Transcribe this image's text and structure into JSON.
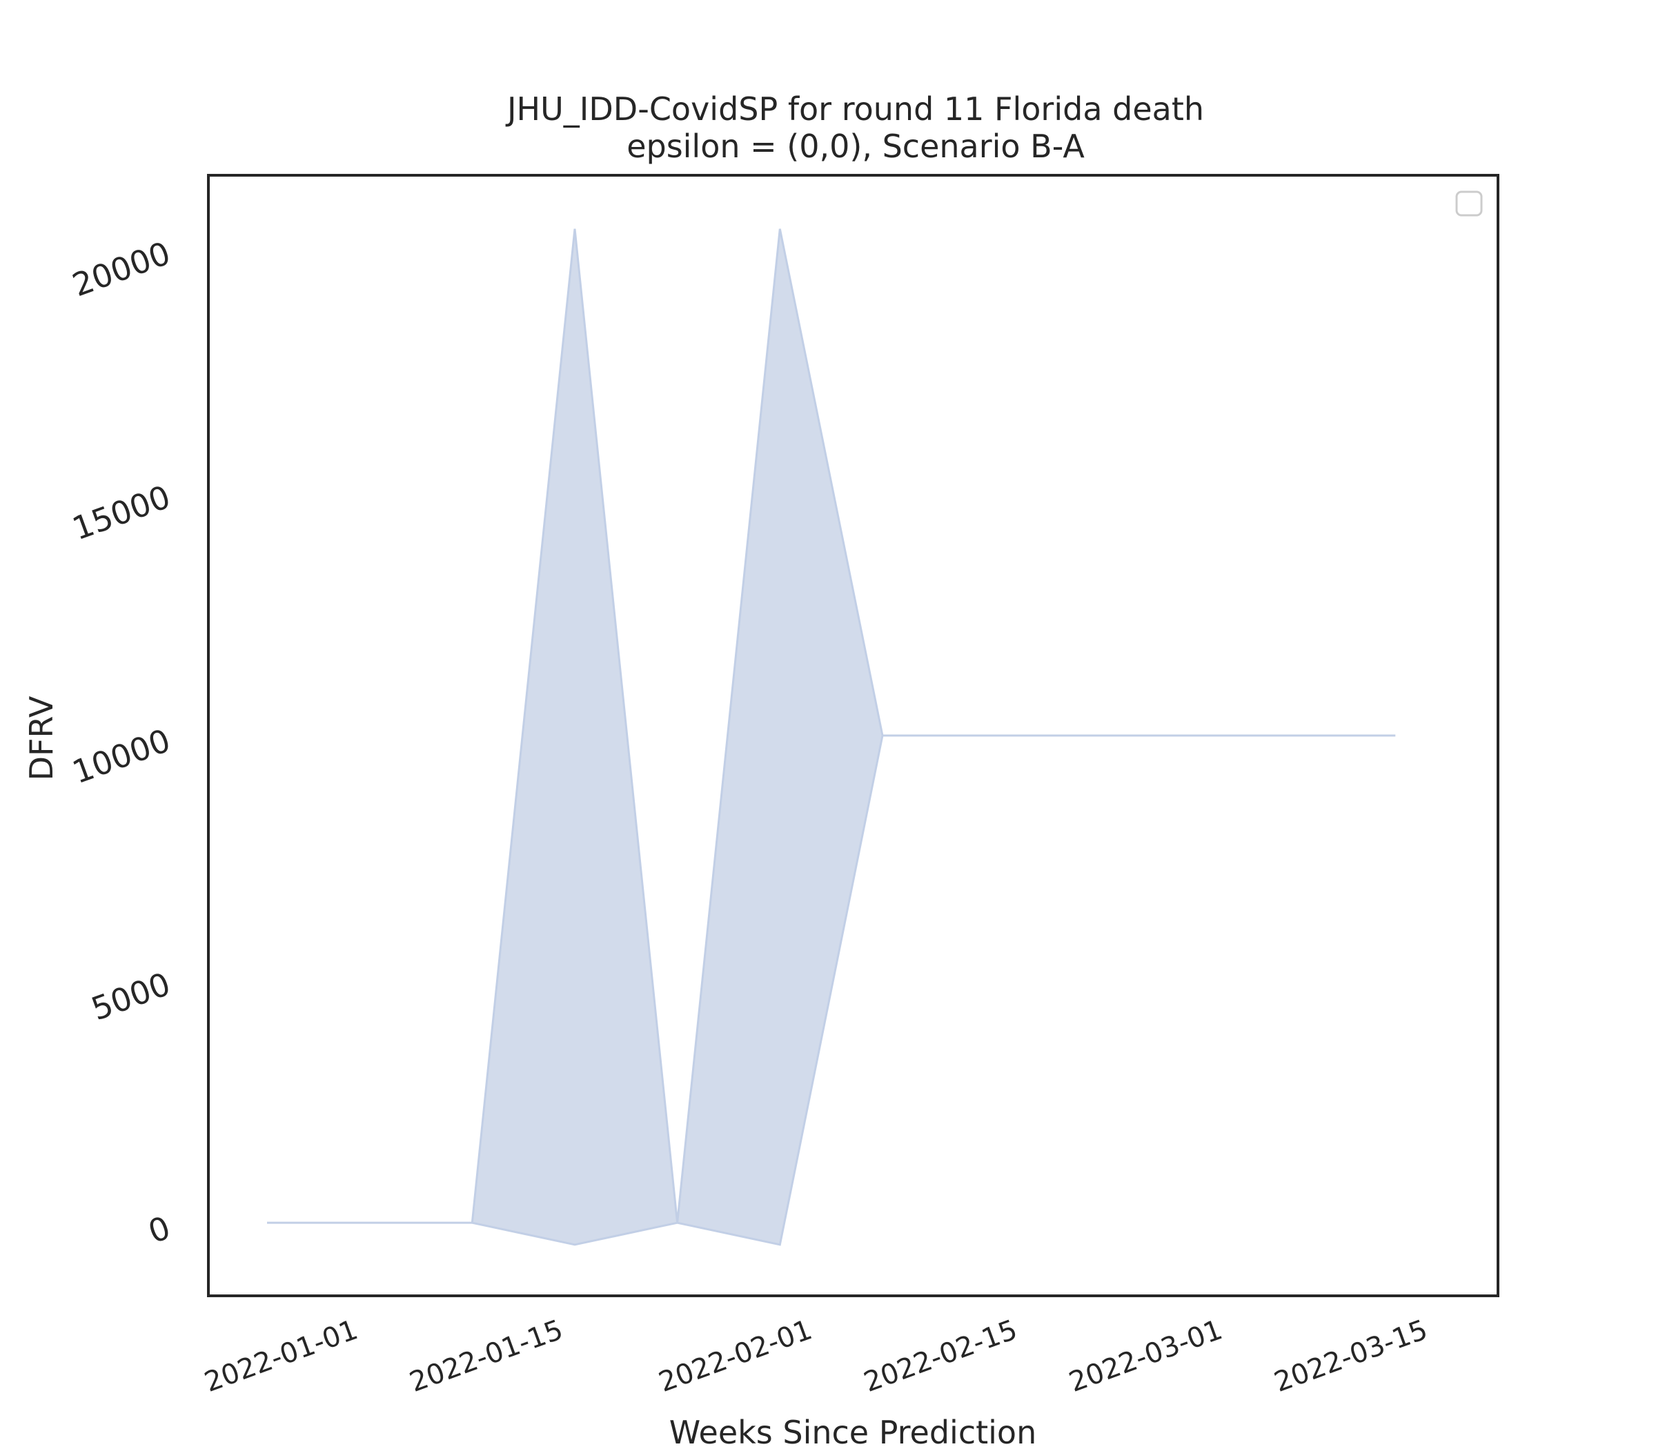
{
  "chart_data": {
    "type": "area",
    "title": "JHU_IDD-CovidSP for round 11 Florida death",
    "subtitle": "epsilon = (0,0), Scenario B-A",
    "xlabel": "Weeks Since Prediction",
    "ylabel": "DFRV",
    "x_tick_labels": [
      "2022-01-01",
      "2022-01-15",
      "2022-02-01",
      "2022-02-15",
      "2022-03-01",
      "2022-03-15"
    ],
    "x_tick_dates": [
      "2022-01-01",
      "2022-01-15",
      "2022-02-01",
      "2022-02-15",
      "2022-03-01",
      "2022-03-15"
    ],
    "y_ticks": [
      0,
      5000,
      10000,
      15000,
      20000
    ],
    "ylim": [
      -1500,
      21500
    ],
    "xlim": [
      "2021-12-23",
      "2022-03-21"
    ],
    "grid": false,
    "legend": "top-right (empty)",
    "color": "#c2cfe6",
    "series": [
      {
        "x": [
          "2021-12-27",
          "2022-01-10",
          "2022-01-17",
          "2022-01-24",
          "2022-01-31",
          "2022-02-07",
          "2022-02-14",
          "2022-02-21",
          "2022-02-28",
          "2022-03-07",
          "2022-03-14"
        ],
        "lower": [
          0,
          0,
          -450,
          0,
          -450,
          10000,
          10000,
          10000,
          10000,
          10000,
          10000
        ],
        "upper": [
          0,
          0,
          20400,
          0,
          20400,
          10000,
          10000,
          10000,
          10000,
          10000,
          10000
        ]
      }
    ]
  }
}
